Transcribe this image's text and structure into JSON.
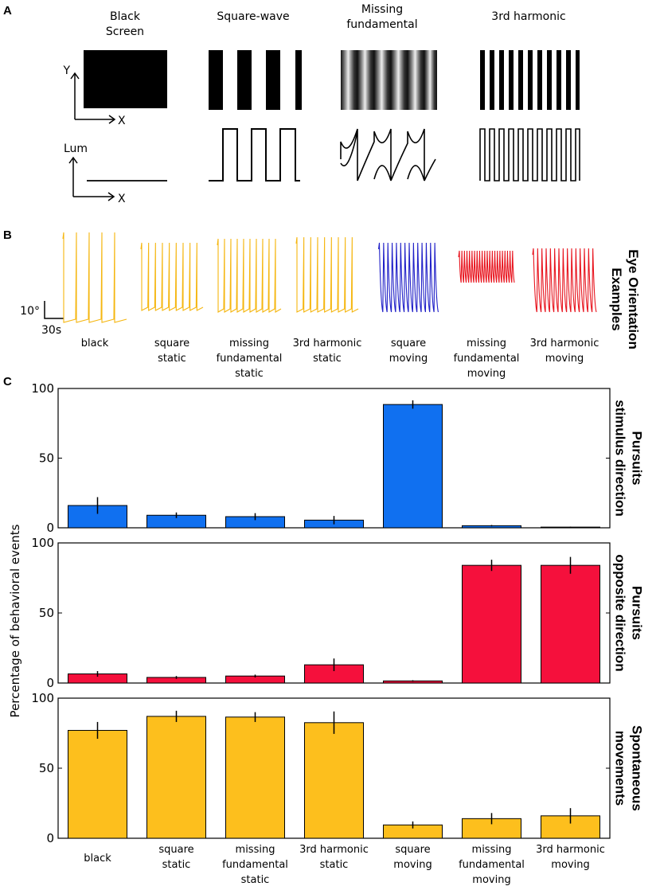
{
  "panels": {
    "a": "A",
    "b": "B",
    "c": "C"
  },
  "panel_a": {
    "stimuli": [
      {
        "lines": [
          "Black",
          "Screen"
        ]
      },
      {
        "lines": [
          "Square-wave"
        ]
      },
      {
        "lines": [
          "Missing",
          "fundamental"
        ]
      },
      {
        "lines": [
          "3rd harmonic"
        ]
      }
    ],
    "axis_y": "Y",
    "axis_x": "X",
    "axis_lum": "Lum",
    "axis_x2": "X"
  },
  "panel_b": {
    "side_label": [
      "Eye Orientation",
      "Examples"
    ],
    "scale_deg": "10°",
    "scale_time": "30s",
    "traces": [
      {
        "lines": [
          "black"
        ],
        "color": "#f5b60f"
      },
      {
        "lines": [
          "square",
          "static"
        ],
        "color": "#f5b60f"
      },
      {
        "lines": [
          "missing",
          "fundamental",
          "static"
        ],
        "color": "#f5b60f"
      },
      {
        "lines": [
          "3rd harmonic",
          "static"
        ],
        "color": "#f5b60f"
      },
      {
        "lines": [
          "square",
          "moving"
        ],
        "color": "#2020c8"
      },
      {
        "lines": [
          "missing",
          "fundamental",
          "moving"
        ],
        "color": "#e8141e"
      },
      {
        "lines": [
          "3rd harmonic",
          "moving"
        ],
        "color": "#e8141e"
      }
    ]
  },
  "chart_data": {
    "type": "bar",
    "ylabel": "Percentage of behavioral events",
    "ylim": [
      0,
      100
    ],
    "yticks": [
      0,
      50,
      100
    ],
    "categories": [
      [
        "black"
      ],
      [
        "square",
        "static"
      ],
      [
        "missing",
        "fundamental",
        "static"
      ],
      [
        "3rd harmonic",
        "static"
      ],
      [
        "square",
        "moving"
      ],
      [
        "missing",
        "fundamental",
        "moving"
      ],
      [
        "3rd harmonic",
        "moving"
      ]
    ],
    "series": [
      {
        "name": "Pursuits stimulus direction",
        "label_lines": [
          "Pursuits",
          "stimulus direction"
        ],
        "color": "#1070f0",
        "values": [
          16,
          9,
          8,
          5.5,
          88.5,
          1.5,
          0.5
        ],
        "errors": [
          6,
          2,
          2.5,
          3,
          3,
          0.5,
          0.3
        ]
      },
      {
        "name": "Pursuits opposite direction",
        "label_lines": [
          "Pursuits",
          "opposite direction"
        ],
        "color": "#f5103c",
        "values": [
          6.5,
          4,
          5,
          13,
          1.5,
          84,
          84
        ],
        "errors": [
          2,
          1,
          1,
          4.5,
          0.5,
          4,
          6
        ]
      },
      {
        "name": "Spontaneous movements",
        "label_lines": [
          "Spontaneous",
          "movements"
        ],
        "color": "#fdbf1d",
        "values": [
          77,
          87,
          86.5,
          82.5,
          9.5,
          14,
          16
        ],
        "errors": [
          6,
          4,
          3.5,
          8,
          2.5,
          4,
          5.5
        ]
      }
    ]
  }
}
